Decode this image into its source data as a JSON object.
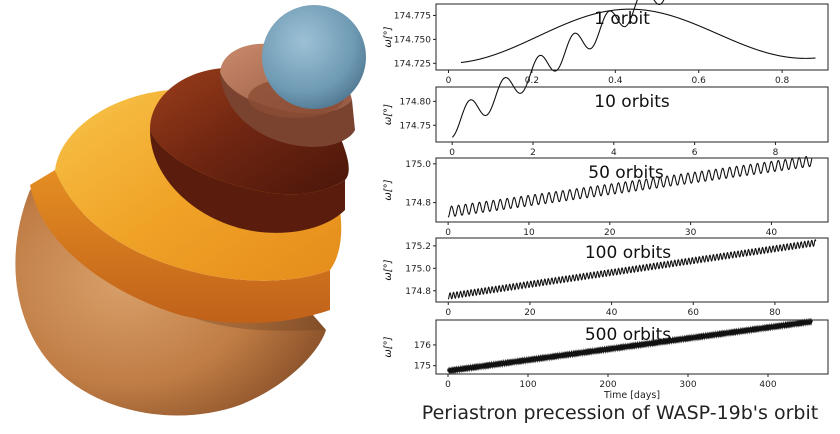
{
  "caption": "Periastron precession of WASP-19b's orbit",
  "chart_data": [
    {
      "type": "line",
      "title": "1 orbit",
      "ylabel": "ω[°]",
      "xlabel": "",
      "xlim": [
        -0.03,
        0.91
      ],
      "ylim": [
        174.718,
        174.787
      ],
      "xticks": [
        0,
        0.2,
        0.4,
        0.6,
        0.8
      ],
      "xtick_labels": [
        "0",
        "0.2",
        "0.4",
        "0.6",
        "0.8"
      ],
      "yticks": [
        174.725,
        174.75,
        174.775
      ],
      "ytick_labels": [
        "174.725",
        "174.750",
        "174.775"
      ],
      "curve": {
        "x0": 0.03,
        "x1": 0.88,
        "mean": 174.752,
        "trend": 0.006,
        "amp": 0.027,
        "period": 0.86,
        "phase": 0.43
      },
      "grid": false
    },
    {
      "type": "line",
      "title": "10 orbits",
      "ylabel": "ω[°]",
      "xlabel": "",
      "xlim": [
        -0.4,
        9.3
      ],
      "ylim": [
        174.715,
        174.83
      ],
      "xticks": [
        0,
        2,
        4,
        6,
        8
      ],
      "xtick_labels": [
        "0",
        "2",
        "4",
        "6",
        "8"
      ],
      "yticks": [
        174.75,
        174.8
      ],
      "ytick_labels": [
        "174.75",
        "174.80"
      ],
      "curve": {
        "x0": 0,
        "x1": 8.9,
        "mean": 174.752,
        "trend": 0.054,
        "amp": 0.027,
        "period": 0.86,
        "phase": 0.43
      },
      "grid": false
    },
    {
      "type": "line",
      "title": "50 orbits",
      "ylabel": "ω[°]",
      "xlabel": "",
      "xlim": [
        -1.5,
        47
      ],
      "ylim": [
        174.7,
        175.03
      ],
      "xticks": [
        0,
        10,
        20,
        30,
        40
      ],
      "xtick_labels": [
        "0",
        "10",
        "20",
        "30",
        "40"
      ],
      "yticks": [
        174.8,
        175.0
      ],
      "ytick_labels": [
        "174.8",
        "175.0"
      ],
      "curve": {
        "x0": 0,
        "x1": 45,
        "mean": 174.752,
        "trend": 0.00583,
        "amp": 0.027,
        "period": 0.86,
        "phase": 0.43
      },
      "grid": false
    },
    {
      "type": "line",
      "title": "100 orbits",
      "ylabel": "ω[°]",
      "xlabel": "",
      "xlim": [
        -3,
        93
      ],
      "ylim": [
        174.7,
        175.27
      ],
      "xticks": [
        0,
        20,
        40,
        60,
        80
      ],
      "xtick_labels": [
        "0",
        "20",
        "40",
        "60",
        "80"
      ],
      "yticks": [
        174.8,
        175.0,
        175.2
      ],
      "ytick_labels": [
        "174.8",
        "175.0",
        "175.2"
      ],
      "curve": {
        "x0": 0,
        "x1": 90,
        "mean": 174.752,
        "trend": 0.00528,
        "amp": 0.027,
        "period": 0.86,
        "phase": 0.43
      },
      "grid": false
    },
    {
      "type": "line",
      "title": "500 orbits",
      "ylabel": "ω[°]",
      "xlabel": "Time [days]",
      "xlim": [
        -15,
        475
      ],
      "ylim": [
        174.6,
        177.2
      ],
      "xticks": [
        0,
        100,
        200,
        300,
        400
      ],
      "xtick_labels": [
        "0",
        "100",
        "200",
        "300",
        "400"
      ],
      "yticks": [
        175,
        176
      ],
      "ytick_labels": [
        "175",
        "176"
      ],
      "curve": {
        "x0": 0,
        "x1": 455,
        "mean": 174.752,
        "trend": 0.005216,
        "amp": 0.027,
        "period": 0.86,
        "phase": 0.43
      },
      "grid": false
    }
  ]
}
